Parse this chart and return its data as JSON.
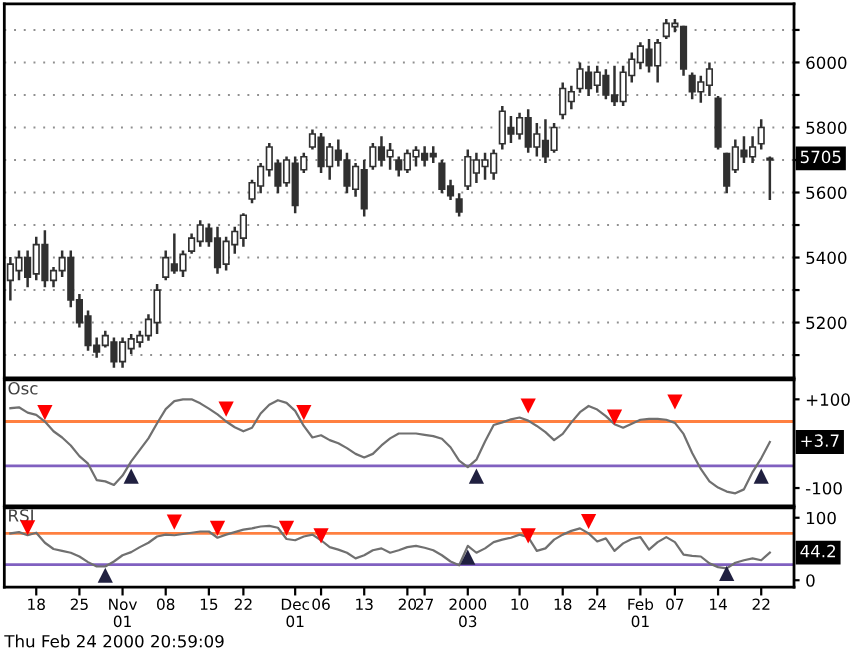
{
  "chart_data": [
    {
      "type": "candlestick",
      "categories": [
        null,
        null,
        null,
        null,
        null,
        null,
        null,
        null,
        null,
        null,
        null,
        null,
        null,
        null,
        null,
        null,
        null,
        null,
        null,
        null,
        null,
        null,
        null,
        null,
        null,
        null,
        null,
        null,
        null,
        null,
        null,
        null,
        null,
        null,
        null,
        null,
        null,
        null,
        null,
        null,
        null,
        null,
        null,
        null,
        null,
        null,
        null,
        null,
        null,
        null,
        null,
        null,
        null,
        null,
        null,
        null,
        null,
        null,
        null,
        null,
        null,
        null,
        null,
        null,
        null,
        null,
        null,
        null,
        null,
        null,
        null,
        null,
        null,
        null,
        null,
        null,
        null,
        null,
        null,
        null,
        null,
        null,
        null,
        null,
        null,
        null,
        null,
        null,
        null
      ],
      "ohlc": [
        [
          5330,
          5402,
          5268,
          5380
        ],
        [
          5360,
          5422,
          5330,
          5400
        ],
        [
          5400,
          5422,
          5309,
          5340
        ],
        [
          5350,
          5464,
          5330,
          5440
        ],
        [
          5440,
          5484,
          5309,
          5330
        ],
        [
          5330,
          5371,
          5309,
          5360
        ],
        [
          5360,
          5422,
          5340,
          5400
        ],
        [
          5400,
          5422,
          5247,
          5270
        ],
        [
          5270,
          5288,
          5185,
          5200
        ],
        [
          5220,
          5237,
          5113,
          5130
        ],
        [
          5130,
          5154,
          5092,
          5110
        ],
        [
          5130,
          5175,
          5123,
          5160
        ],
        [
          5140,
          5154,
          5061,
          5080
        ],
        [
          5080,
          5154,
          5061,
          5140
        ],
        [
          5120,
          5165,
          5103,
          5150
        ],
        [
          5140,
          5175,
          5123,
          5160
        ],
        [
          5160,
          5226,
          5144,
          5210
        ],
        [
          5200,
          5319,
          5165,
          5300
        ],
        [
          5340,
          5422,
          5330,
          5400
        ],
        [
          5380,
          5474,
          5350,
          5360
        ],
        [
          5360,
          5422,
          5340,
          5410
        ],
        [
          5420,
          5474,
          5412,
          5460
        ],
        [
          5450,
          5515,
          5433,
          5500
        ],
        [
          5490,
          5505,
          5433,
          5450
        ],
        [
          5460,
          5495,
          5350,
          5370
        ],
        [
          5380,
          5464,
          5360,
          5450
        ],
        [
          5440,
          5495,
          5412,
          5480
        ],
        [
          5460,
          5536,
          5433,
          5530
        ],
        [
          5580,
          5639,
          5567,
          5630
        ],
        [
          5620,
          5691,
          5598,
          5680
        ],
        [
          5670,
          5752,
          5649,
          5740
        ],
        [
          5690,
          5701,
          5598,
          5620
        ],
        [
          5630,
          5711,
          5618,
          5700
        ],
        [
          5690,
          5711,
          5536,
          5560
        ],
        [
          5670,
          5722,
          5660,
          5710
        ],
        [
          5740,
          5794,
          5732,
          5780
        ],
        [
          5770,
          5783,
          5660,
          5680
        ],
        [
          5680,
          5752,
          5639,
          5740
        ],
        [
          5730,
          5763,
          5680,
          5700
        ],
        [
          5700,
          5722,
          5598,
          5620
        ],
        [
          5610,
          5691,
          5587,
          5680
        ],
        [
          5670,
          5701,
          5526,
          5550
        ],
        [
          5680,
          5752,
          5670,
          5740
        ],
        [
          5740,
          5773,
          5680,
          5700
        ],
        [
          5710,
          5752,
          5670,
          5730
        ],
        [
          5700,
          5711,
          5649,
          5670
        ],
        [
          5670,
          5732,
          5660,
          5720
        ],
        [
          5710,
          5742,
          5680,
          5730
        ],
        [
          5720,
          5742,
          5680,
          5700
        ],
        [
          5720,
          5742,
          5691,
          5710
        ],
        [
          5690,
          5701,
          5598,
          5610
        ],
        [
          5620,
          5639,
          5577,
          5590
        ],
        [
          5580,
          5598,
          5526,
          5540
        ],
        [
          5620,
          5732,
          5608,
          5710
        ],
        [
          5660,
          5722,
          5629,
          5700
        ],
        [
          5680,
          5722,
          5639,
          5700
        ],
        [
          5660,
          5732,
          5639,
          5720
        ],
        [
          5750,
          5866,
          5732,
          5850
        ],
        [
          5800,
          5835,
          5752,
          5780
        ],
        [
          5780,
          5845,
          5763,
          5830
        ],
        [
          5830,
          5856,
          5722,
          5740
        ],
        [
          5740,
          5814,
          5711,
          5780
        ],
        [
          5760,
          5825,
          5691,
          5710
        ],
        [
          5730,
          5814,
          5722,
          5800
        ],
        [
          5840,
          5938,
          5825,
          5920
        ],
        [
          5880,
          5928,
          5856,
          5910
        ],
        [
          5920,
          6000,
          5907,
          5980
        ],
        [
          5970,
          5990,
          5897,
          5920
        ],
        [
          5930,
          5990,
          5907,
          5970
        ],
        [
          5960,
          5979,
          5887,
          5900
        ],
        [
          5900,
          5990,
          5866,
          5880
        ],
        [
          5880,
          5990,
          5866,
          5970
        ],
        [
          5960,
          6031,
          5938,
          6010
        ],
        [
          6000,
          6062,
          5979,
          6050
        ],
        [
          6040,
          6072,
          5969,
          5990
        ],
        [
          5990,
          6072,
          5938,
          6060
        ],
        [
          6080,
          6134,
          6072,
          6120
        ],
        [
          6110,
          6134,
          6093,
          6120
        ],
        [
          6110,
          6113,
          5959,
          5980
        ],
        [
          5960,
          5969,
          5887,
          5910
        ],
        [
          5910,
          5959,
          5876,
          5940
        ],
        [
          5930,
          6000,
          5897,
          5980
        ],
        [
          5890,
          5897,
          5732,
          5740
        ],
        [
          5720,
          5722,
          5598,
          5620
        ],
        [
          5670,
          5763,
          5660,
          5740
        ],
        [
          5730,
          5773,
          5691,
          5710
        ],
        [
          5710,
          5773,
          5691,
          5740
        ],
        [
          5750,
          5825,
          5732,
          5800
        ],
        [
          5700,
          5711,
          5577,
          5705
        ]
      ],
      "ylim": [
        5030,
        6180
      ],
      "yticks": [
        {
          "value": 5100,
          "label": null
        },
        5200,
        {
          "value": 5300,
          "label": null
        },
        5400,
        {
          "value": 5500,
          "label": null
        },
        5600,
        {
          "value": 5700,
          "label": null
        },
        5800,
        {
          "value": 5900,
          "label": null
        },
        6000,
        {
          "value": 6100,
          "label": null
        }
      ],
      "grid": "y",
      "tick_labels": "y",
      "annotations": [
        {
          "text": "5705",
          "y": 5705
        }
      ]
    },
    {
      "type": "line",
      "title": "Osc",
      "categories": [
        null,
        null,
        null,
        null,
        null,
        null,
        null,
        null,
        null,
        null,
        null,
        null,
        null,
        null,
        null,
        null,
        null,
        null,
        null,
        null,
        null,
        null,
        null,
        null,
        null,
        null,
        null,
        null,
        null,
        null,
        null,
        null,
        null,
        null,
        null,
        null,
        null,
        null,
        null,
        null,
        null,
        null,
        null,
        null,
        null,
        null,
        null,
        null,
        null,
        null,
        null,
        null,
        null,
        null,
        null,
        null,
        null,
        null,
        null,
        null,
        null,
        null,
        null,
        null,
        null,
        null,
        null,
        null,
        null,
        null,
        null,
        null,
        null,
        null,
        null,
        null,
        null,
        null,
        null,
        null,
        null,
        null,
        null,
        null,
        null,
        null,
        null,
        null,
        null
      ],
      "series": [
        {
          "color": "#707070",
          "values": [
            80,
            82,
            70,
            65,
            50,
            28,
            14,
            -4,
            -28,
            -45,
            -82,
            -85,
            -93,
            -72,
            -40,
            -14,
            12,
            46,
            78,
            96,
            100,
            100,
            91,
            79,
            66,
            50,
            37,
            28,
            36,
            68,
            88,
            98,
            92,
            74,
            40,
            14,
            19,
            8,
            1,
            -10,
            -23,
            -31,
            -23,
            -4,
            12,
            23,
            23,
            23,
            20,
            17,
            11,
            -8,
            -38,
            -53,
            -36,
            5,
            42,
            48,
            55,
            59,
            52,
            40,
            26,
            8,
            22,
            48,
            71,
            85,
            77,
            62,
            44,
            36,
            45,
            54,
            56,
            56,
            54,
            47,
            22,
            -21,
            -57,
            -85,
            -99,
            -108,
            -112,
            -103,
            -64,
            -33,
            3.7
          ]
        },
        {
          "type": "scatter",
          "marker": "triangle",
          "color": "#ff0000",
          "values": [
            null,
            null,
            null,
            null,
            70,
            null,
            null,
            null,
            null,
            null,
            null,
            null,
            null,
            null,
            null,
            null,
            null,
            null,
            null,
            null,
            null,
            null,
            null,
            null,
            null,
            78,
            null,
            null,
            null,
            null,
            null,
            null,
            null,
            null,
            70,
            null,
            null,
            null,
            null,
            null,
            null,
            null,
            null,
            null,
            null,
            null,
            null,
            null,
            null,
            null,
            null,
            null,
            null,
            null,
            null,
            null,
            null,
            null,
            null,
            null,
            85,
            null,
            null,
            null,
            null,
            null,
            null,
            null,
            null,
            null,
            60,
            null,
            null,
            null,
            null,
            null,
            null,
            94,
            null,
            null,
            null,
            null,
            null,
            null,
            null,
            null,
            null,
            null,
            null
          ]
        },
        {
          "type": "scatter",
          "marker": "triangle",
          "color": "#202040",
          "values": [
            null,
            null,
            null,
            null,
            null,
            null,
            null,
            null,
            null,
            null,
            null,
            null,
            null,
            null,
            -73,
            null,
            null,
            null,
            null,
            null,
            null,
            null,
            null,
            null,
            null,
            null,
            null,
            null,
            null,
            null,
            null,
            null,
            null,
            null,
            null,
            null,
            null,
            null,
            null,
            null,
            null,
            null,
            null,
            null,
            null,
            null,
            null,
            null,
            null,
            null,
            null,
            null,
            null,
            null,
            -73,
            null,
            null,
            null,
            null,
            null,
            null,
            null,
            null,
            null,
            null,
            null,
            null,
            null,
            null,
            null,
            null,
            null,
            null,
            null,
            null,
            null,
            null,
            null,
            null,
            null,
            null,
            null,
            null,
            null,
            null,
            null,
            null,
            -73,
            null
          ]
        }
      ],
      "ref_lines": [
        {
          "axis": "y",
          "value": 50,
          "color": "#ff8040"
        },
        {
          "axis": "y",
          "value": -50,
          "color": "#8060c0"
        }
      ],
      "ylim": [
        -140,
        144
      ],
      "yticks": [
        {
          "value": 100,
          "label": "+100"
        },
        {
          "value": -100,
          "label": "-100"
        }
      ],
      "tick_labels": "y",
      "annotations": [
        {
          "text": "+3.7",
          "y": 3.7
        }
      ]
    },
    {
      "type": "line",
      "title": "RSI",
      "categories": [
        null,
        null,
        null,
        "18",
        null,
        null,
        null,
        null,
        "25",
        null,
        null,
        null,
        null,
        "Nov\n01",
        null,
        null,
        null,
        null,
        "08",
        null,
        null,
        null,
        null,
        "15",
        null,
        null,
        null,
        "22",
        null,
        null,
        null,
        null,
        null,
        "Dec\n01",
        null,
        null,
        "06",
        null,
        null,
        null,
        null,
        "13",
        null,
        null,
        null,
        null,
        "20",
        null,
        "27",
        null,
        null,
        null,
        null,
        "2000\n03",
        null,
        null,
        null,
        null,
        null,
        "10",
        null,
        null,
        null,
        null,
        "18",
        null,
        null,
        null,
        "24",
        null,
        null,
        null,
        null,
        "Feb\n01",
        null,
        null,
        null,
        "07",
        null,
        null,
        null,
        null,
        "14",
        null,
        null,
        null,
        null,
        "22",
        null
      ],
      "series": [
        {
          "color": "#707070",
          "values": [
            75,
            77,
            72,
            76,
            60,
            50,
            47,
            44,
            38,
            29,
            22,
            22,
            30,
            40,
            45,
            53,
            60,
            70,
            73,
            72,
            74,
            76,
            78,
            78,
            68,
            73,
            77,
            81,
            83,
            86,
            87,
            84,
            66,
            64,
            70,
            73,
            64,
            53,
            49,
            44,
            35,
            40,
            48,
            51,
            44,
            48,
            53,
            55,
            52,
            48,
            40,
            30,
            24,
            55,
            44,
            51,
            61,
            65,
            68,
            73,
            69,
            47,
            51,
            65,
            73,
            79,
            83,
            75,
            62,
            67,
            47,
            59,
            66,
            69,
            49,
            61,
            69,
            61,
            41,
            39,
            38,
            27,
            21,
            19,
            28,
            32,
            35,
            32,
            44.2
          ]
        },
        {
          "type": "scatter",
          "marker": "triangle",
          "color": "#ff0000",
          "values": [
            null,
            null,
            84,
            null,
            null,
            null,
            null,
            null,
            null,
            null,
            null,
            null,
            null,
            null,
            null,
            null,
            null,
            null,
            null,
            93,
            null,
            null,
            null,
            null,
            83,
            null,
            null,
            null,
            null,
            null,
            null,
            null,
            83,
            null,
            null,
            null,
            71,
            null,
            null,
            null,
            null,
            null,
            null,
            null,
            null,
            null,
            null,
            null,
            null,
            null,
            null,
            null,
            null,
            null,
            null,
            null,
            null,
            null,
            null,
            null,
            71,
            null,
            null,
            null,
            null,
            null,
            null,
            94,
            null,
            null,
            null,
            null,
            null,
            null,
            null,
            null,
            null,
            null,
            null,
            null,
            null,
            null,
            null,
            null,
            null,
            null,
            null,
            null,
            null
          ]
        },
        {
          "type": "scatter",
          "marker": "triangle",
          "color": "#202040",
          "values": [
            null,
            null,
            null,
            null,
            null,
            null,
            null,
            null,
            null,
            null,
            null,
            8,
            null,
            null,
            null,
            null,
            null,
            null,
            null,
            null,
            null,
            null,
            null,
            null,
            null,
            null,
            null,
            null,
            null,
            null,
            null,
            null,
            null,
            null,
            null,
            null,
            null,
            null,
            null,
            null,
            null,
            null,
            null,
            null,
            null,
            null,
            null,
            null,
            null,
            null,
            null,
            null,
            null,
            37,
            null,
            null,
            null,
            null,
            null,
            null,
            null,
            null,
            null,
            null,
            null,
            null,
            null,
            null,
            null,
            null,
            null,
            null,
            null,
            null,
            null,
            null,
            null,
            null,
            null,
            null,
            null,
            null,
            null,
            11,
            null,
            null,
            null,
            null,
            null
          ]
        }
      ],
      "ref_lines": [
        {
          "axis": "y",
          "value": 75,
          "color": "#ff8040"
        },
        {
          "axis": "y",
          "value": 25,
          "color": "#8060c0"
        }
      ],
      "ylim": [
        -11,
        116
      ],
      "yticks": [
        0,
        100
      ],
      "annotations": [
        {
          "text": "44.2",
          "y": 44.2
        },
        "Thu Feb 24 2000 20:59:09"
      ]
    }
  ]
}
